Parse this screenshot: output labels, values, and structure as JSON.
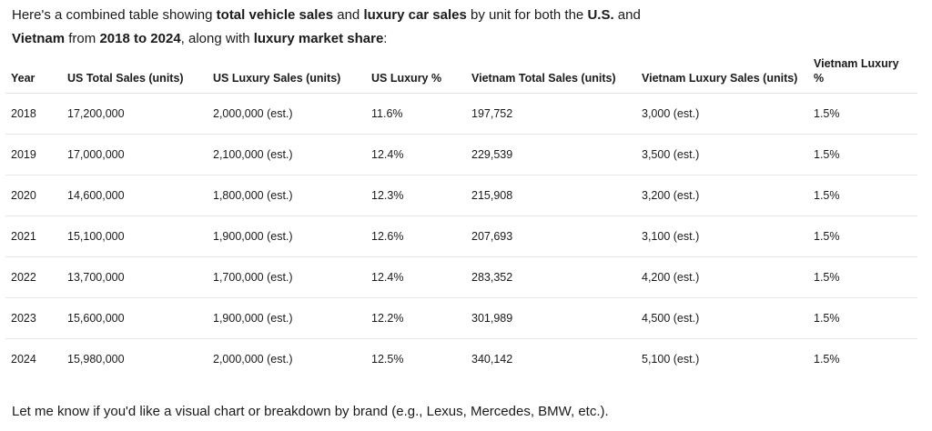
{
  "intro": {
    "p1": "Here's a combined table showing ",
    "b1": "total vehicle sales",
    "p2": " and ",
    "b2": "luxury car sales",
    "p3": " by unit for both the ",
    "b3": "U.S.",
    "p4": " and ",
    "b4": "Vietnam",
    "p5": " from ",
    "b5": "2018 to 2024",
    "p6": ", along with ",
    "b6": "luxury market share",
    "p7": ":"
  },
  "table": {
    "headers": [
      "Year",
      "US Total Sales (units)",
      "US Luxury Sales (units)",
      "US Luxury %",
      "Vietnam Total Sales (units)",
      "Vietnam Luxury Sales (units)",
      "Vietnam Luxury %"
    ],
    "rows": [
      [
        "2018",
        "17,200,000",
        "2,000,000 (est.)",
        "11.6%",
        "197,752",
        "3,000 (est.)",
        "1.5%"
      ],
      [
        "2019",
        "17,000,000",
        "2,100,000 (est.)",
        "12.4%",
        "229,539",
        "3,500 (est.)",
        "1.5%"
      ],
      [
        "2020",
        "14,600,000",
        "1,800,000 (est.)",
        "12.3%",
        "215,908",
        "3,200 (est.)",
        "1.5%"
      ],
      [
        "2021",
        "15,100,000",
        "1,900,000 (est.)",
        "12.6%",
        "207,693",
        "3,100 (est.)",
        "1.5%"
      ],
      [
        "2022",
        "13,700,000",
        "1,700,000 (est.)",
        "12.4%",
        "283,352",
        "4,200 (est.)",
        "1.5%"
      ],
      [
        "2023",
        "15,600,000",
        "1,900,000 (est.)",
        "12.2%",
        "301,989",
        "4,500 (est.)",
        "1.5%"
      ],
      [
        "2024",
        "15,980,000",
        "2,000,000 (est.)",
        "12.5%",
        "340,142",
        "5,100 (est.)",
        "1.5%"
      ]
    ]
  },
  "footer": "Let me know if you'd like a visual chart or breakdown by brand (e.g., Lexus, Mercedes, BMW, etc.)."
}
